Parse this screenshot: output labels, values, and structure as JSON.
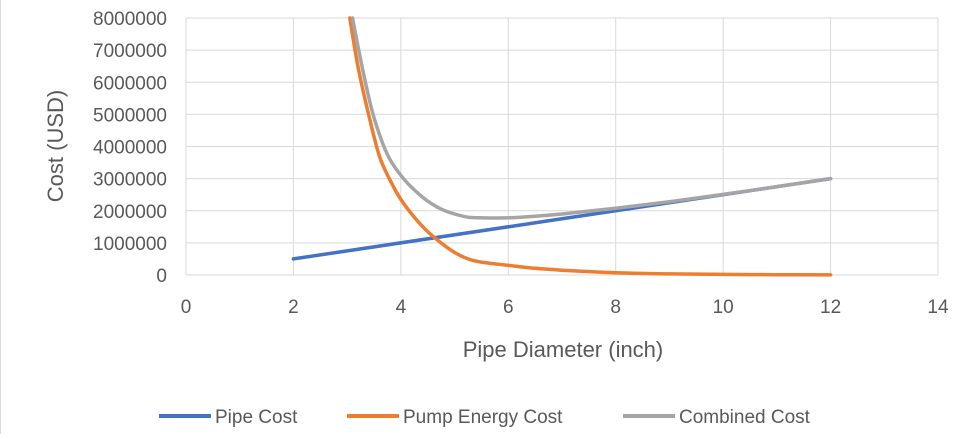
{
  "chart_data": {
    "type": "line",
    "title": "",
    "xlabel": "Pipe Diameter (inch)",
    "ylabel": "Cost  (USD)",
    "xlim": [
      0,
      14
    ],
    "ylim": [
      0,
      8000000
    ],
    "x_ticks": [
      0,
      2,
      4,
      6,
      8,
      10,
      12,
      14
    ],
    "y_ticks": [
      0,
      1000000,
      2000000,
      3000000,
      4000000,
      5000000,
      6000000,
      7000000,
      8000000
    ],
    "x_tick_labels": [
      "0",
      "2",
      "4",
      "6",
      "8",
      "10",
      "12",
      "14"
    ],
    "y_tick_labels": [
      "0",
      "1000000",
      "2000000",
      "3000000",
      "4000000",
      "5000000",
      "6000000",
      "7000000",
      "8000000"
    ],
    "grid": true,
    "legend_position": "bottom",
    "series": [
      {
        "name": "Pipe Cost",
        "color": "#4472c4",
        "points": [
          [
            2,
            500000
          ],
          [
            12,
            3000000
          ]
        ]
      },
      {
        "name": "Pump Energy Cost",
        "color": "#ed7d31",
        "points": [
          [
            3.05,
            8000000
          ],
          [
            3.2,
            6500000
          ],
          [
            3.4,
            5000000
          ],
          [
            3.6,
            3700000
          ],
          [
            3.8,
            2950000
          ],
          [
            4,
            2350000
          ],
          [
            4.25,
            1800000
          ],
          [
            4.5,
            1350000
          ],
          [
            4.75,
            1000000
          ],
          [
            5,
            700000
          ],
          [
            5.25,
            500000
          ],
          [
            5.5,
            400000
          ],
          [
            6,
            300000
          ],
          [
            6.5,
            210000
          ],
          [
            7,
            150000
          ],
          [
            8,
            70000
          ],
          [
            9,
            35000
          ],
          [
            10,
            18000
          ],
          [
            11,
            8000
          ],
          [
            12,
            3000
          ]
        ]
      },
      {
        "name": "Combined Cost",
        "color": "#a5a5a5",
        "points": [
          [
            3.1,
            8000000
          ],
          [
            3.3,
            6300000
          ],
          [
            3.5,
            4900000
          ],
          [
            3.75,
            3750000
          ],
          [
            4,
            3100000
          ],
          [
            4.25,
            2650000
          ],
          [
            4.5,
            2300000
          ],
          [
            4.75,
            2050000
          ],
          [
            5,
            1900000
          ],
          [
            5.25,
            1800000
          ],
          [
            5.5,
            1780000
          ],
          [
            6,
            1780000
          ],
          [
            6.5,
            1830000
          ],
          [
            7,
            1900000
          ],
          [
            8,
            2080000
          ],
          [
            9,
            2280000
          ],
          [
            10,
            2510000
          ],
          [
            11,
            2750000
          ],
          [
            12,
            3000000
          ]
        ]
      }
    ]
  }
}
